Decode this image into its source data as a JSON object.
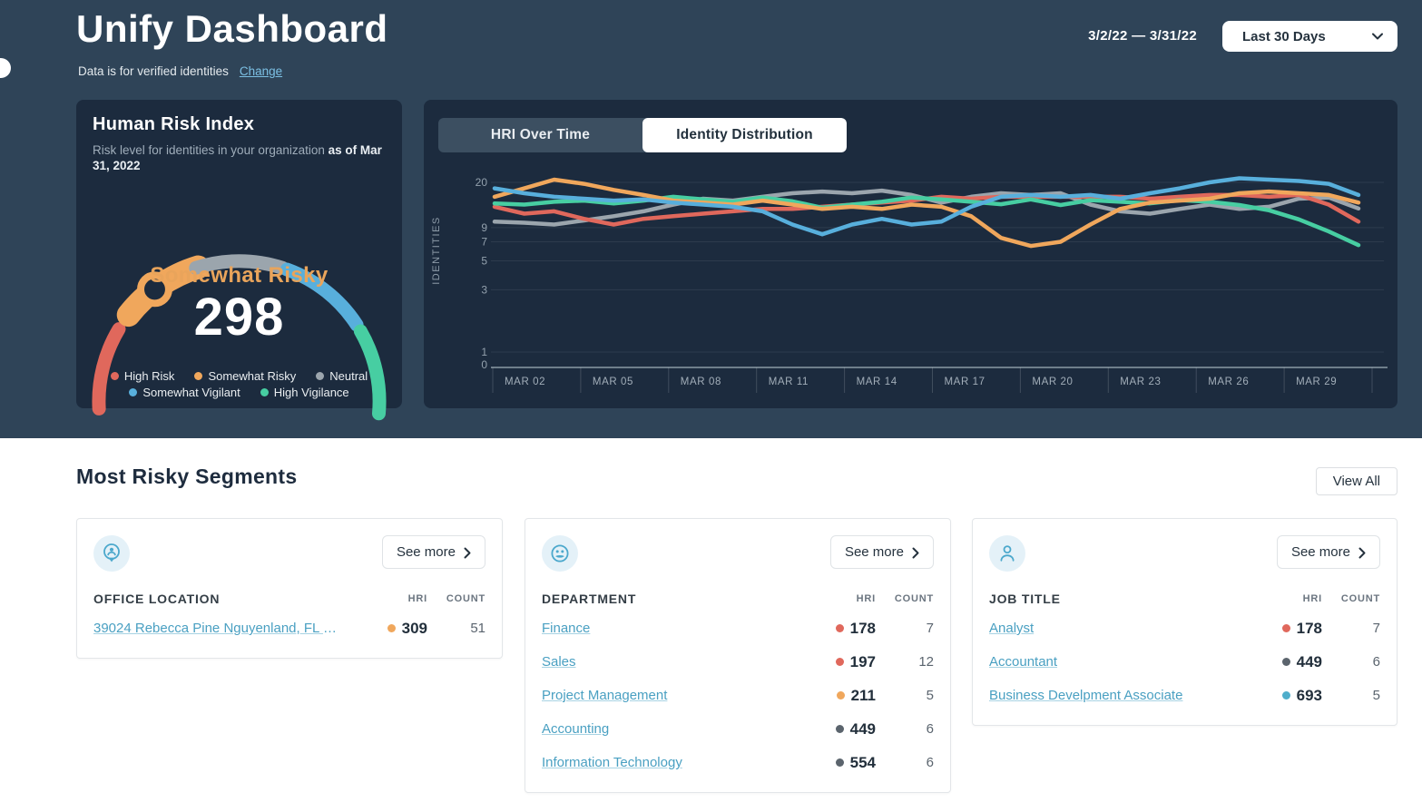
{
  "colors": {
    "header_bg": "#2F4458",
    "card_bg": "#1C2B3E",
    "red": "#E0685C",
    "orange": "#F0A75C",
    "gray": "#9BA5AD",
    "blue": "#58AFDC",
    "green": "#47CEA2",
    "dark_dot": "#5B646D",
    "job_blue_dot": "#4FAECB",
    "link_teal": "#4AA0C2"
  },
  "header": {
    "title": "Unify Dashboard",
    "subtitle": "Data is for verified identities",
    "change_link": "Change",
    "date_range": "3/2/22 — 3/31/22",
    "period_button": "Last 30 Days"
  },
  "hri_card": {
    "title": "Human Risk Index",
    "subtitle": "Risk level for identities in your organization",
    "subtitle_bold": "as of Mar 31, 2022",
    "gauge_label": "Somewhat Risky",
    "gauge_value": "298",
    "legend": [
      {
        "label": "High Risk",
        "color": "#E0685C"
      },
      {
        "label": "Somewhat Risky",
        "color": "#F0A75C"
      },
      {
        "label": "Neutral",
        "color": "#9BA5AD"
      },
      {
        "label": "Somewhat Vigilant",
        "color": "#58AFDC"
      },
      {
        "label": "High Vigilance",
        "color": "#47CEA2"
      }
    ]
  },
  "chart_card": {
    "tabs": [
      {
        "label": "HRI Over Time",
        "active": false
      },
      {
        "label": "Identity Distribution",
        "active": true
      }
    ],
    "ylabel": "IDENTITIES"
  },
  "chart_data": {
    "type": "line",
    "title": "Identity Distribution",
    "ylabel": "IDENTITIES",
    "yscale": "log",
    "yticks": [
      20,
      9,
      7,
      5,
      3,
      1,
      0
    ],
    "xticks": [
      "MAR 02",
      "MAR 05",
      "MAR 08",
      "MAR 11",
      "MAR 14",
      "MAR 17",
      "MAR 20",
      "MAR 23",
      "MAR 26",
      "MAR 29"
    ],
    "x": [
      2,
      3,
      4,
      5,
      6,
      7,
      8,
      9,
      10,
      11,
      12,
      13,
      14,
      15,
      16,
      17,
      18,
      19,
      20,
      21,
      22,
      23,
      24,
      25,
      26,
      27,
      28,
      29,
      30,
      31
    ],
    "series": [
      {
        "name": "Neutral",
        "color": "#9BA5AD",
        "values": [
          10,
          9.8,
          9.5,
          10.2,
          11,
          12,
          13.5,
          15,
          14.5,
          15.5,
          16.5,
          17,
          16.5,
          17.3,
          16,
          14,
          15.5,
          16.5,
          16,
          16.5,
          13.5,
          12,
          11.5,
          12.5,
          13.5,
          12.5,
          13,
          15,
          15.3,
          12.6
        ]
      },
      {
        "name": "High Risk",
        "color": "#E0685C",
        "values": [
          13,
          11.5,
          12,
          10.5,
          9.5,
          10.5,
          11,
          11.5,
          12,
          12.5,
          12.5,
          13,
          13.5,
          14,
          14.5,
          15.5,
          15,
          15.5,
          15.5,
          15.5,
          15.5,
          15.5,
          15,
          15.5,
          16,
          16,
          15.5,
          16,
          13.5,
          10
        ]
      },
      {
        "name": "High Vigilance",
        "color": "#47CEA2",
        "values": [
          13.8,
          13.5,
          14.2,
          14.5,
          13.8,
          14.5,
          15.5,
          14.8,
          14.2,
          15.3,
          14.3,
          12.8,
          13.5,
          14.2,
          15.3,
          14.8,
          14.2,
          13.6,
          14.8,
          13.4,
          14.6,
          14.2,
          13.8,
          14.6,
          14.2,
          13.4,
          12.2,
          10.4,
          8.4,
          6.6
        ]
      },
      {
        "name": "Somewhat Risky",
        "color": "#F0A75C",
        "values": [
          15.5,
          18,
          21,
          19.5,
          17.5,
          16,
          14.5,
          14,
          13.5,
          14.5,
          13.5,
          12.5,
          13,
          12.5,
          13.5,
          13,
          11,
          7.5,
          6.5,
          7,
          9.5,
          12.5,
          14,
          14.5,
          15,
          16.5,
          17,
          16.5,
          16,
          14
        ]
      },
      {
        "name": "Somewhat Vigilant",
        "color": "#58AFDC",
        "values": [
          18,
          16.5,
          15.5,
          15,
          14.5,
          14.8,
          14,
          13.5,
          13,
          12,
          9.5,
          8,
          9.5,
          10.5,
          9.5,
          10,
          13,
          15.5,
          16,
          15.5,
          16,
          15,
          16.5,
          18,
          20,
          21.5,
          21,
          20.5,
          19.5,
          16
        ]
      }
    ]
  },
  "segments": {
    "title": "Most Risky Segments",
    "view_all": "View All",
    "see_more": "See more",
    "hri_col": "HRI",
    "count_col": "COUNT",
    "cards": [
      {
        "icon": "location-pin-person",
        "header": "OFFICE LOCATION",
        "rows": [
          {
            "label": "39024 Rebecca Pine Nguyenland, FL O...",
            "hri": "309",
            "dot": "#F0A75C",
            "count": "51"
          }
        ]
      },
      {
        "icon": "people-group",
        "header": "DEPARTMENT",
        "rows": [
          {
            "label": "Finance",
            "hri": "178",
            "dot": "#E0685C",
            "count": "7"
          },
          {
            "label": "Sales",
            "hri": "197",
            "dot": "#E0685C",
            "count": "12"
          },
          {
            "label": "Project Management",
            "hri": "211",
            "dot": "#F0A75C",
            "count": "5"
          },
          {
            "label": "Accounting",
            "hri": "449",
            "dot": "#5B646D",
            "count": "6"
          },
          {
            "label": "Information Technology",
            "hri": "554",
            "dot": "#5B646D",
            "count": "6"
          }
        ]
      },
      {
        "icon": "person",
        "header": "JOB TITLE",
        "rows": [
          {
            "label": "Analyst",
            "hri": "178",
            "dot": "#E0685C",
            "count": "7"
          },
          {
            "label": "Accountant",
            "hri": "449",
            "dot": "#5B646D",
            "count": "6"
          },
          {
            "label": "Business Develpment Associate",
            "hri": "693",
            "dot": "#4FAECB",
            "count": "5"
          }
        ]
      }
    ]
  }
}
